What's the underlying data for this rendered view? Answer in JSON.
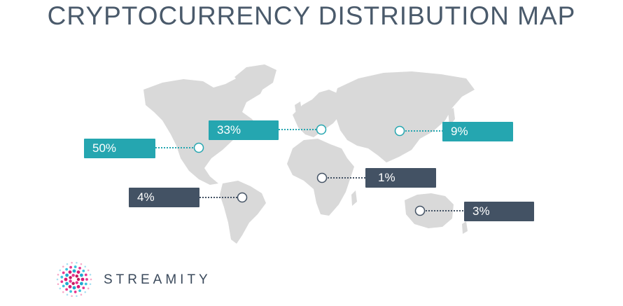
{
  "title": "CRYPTOCURRENCY DISTRIBUTION MAP",
  "brand": {
    "name": "STREAMITY"
  },
  "colors": {
    "teal": "#25a6b0",
    "dark": "#435264",
    "land": "#d9d9d9",
    "title": "#4a5a6b"
  },
  "markers": [
    {
      "id": "north-america",
      "value": "50%",
      "style": "teal"
    },
    {
      "id": "europe",
      "value": "33%",
      "style": "teal"
    },
    {
      "id": "east-asia",
      "value": "9%",
      "style": "teal"
    },
    {
      "id": "south-america",
      "value": "4%",
      "style": "dark"
    },
    {
      "id": "africa",
      "value": "1%",
      "style": "dark"
    },
    {
      "id": "australia",
      "value": "3%",
      "style": "dark"
    }
  ]
}
